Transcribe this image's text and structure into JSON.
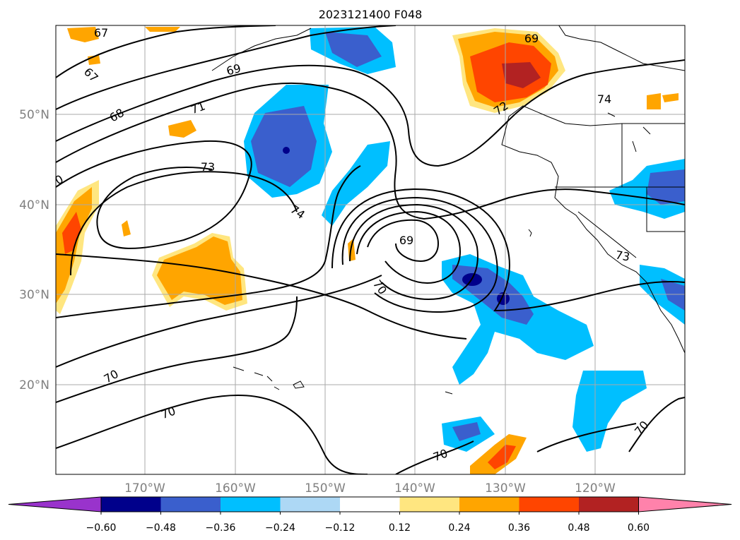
{
  "title": "2023121400 F048",
  "lat_labels": [
    "50°N",
    "40°N",
    "30°N",
    "20°N"
  ],
  "lon_labels": [
    "170°W",
    "160°W",
    "150°W",
    "140°W",
    "130°W",
    "120°W"
  ],
  "contour_labels": [
    "67",
    "67",
    "68",
    "69",
    "69",
    "70",
    "70",
    "70",
    "70",
    "70",
    "71",
    "72",
    "73",
    "73",
    "74",
    "74",
    "69"
  ],
  "colorbar": {
    "tick_labels": [
      "−0.60",
      "−0.48",
      "−0.36",
      "−0.24",
      "−0.12",
      "0.12",
      "0.24",
      "0.36",
      "0.48",
      "0.60"
    ],
    "colors": [
      "#9933cc",
      "#00008b",
      "#3a5fcd",
      "#00bfff",
      "#add8f5",
      "#ffffff",
      "#ffe680",
      "#ffa500",
      "#ff4500",
      "#b22222",
      "#ff82ab"
    ]
  }
}
